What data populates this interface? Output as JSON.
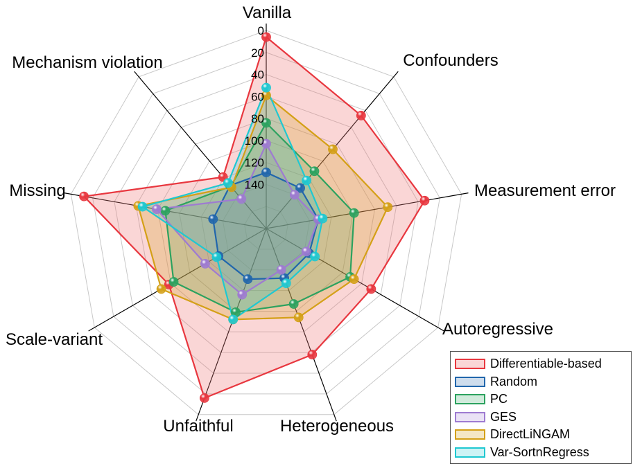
{
  "chart_data": {
    "type": "radar",
    "axes": [
      "Vanilla",
      "Confounders",
      "Measurement error",
      "Autoregressive",
      "Heterogeneous",
      "Unfaithful",
      "Scale-variant",
      "Missing",
      "Mechanism violation"
    ],
    "radial_ticks": [
      "0",
      "20",
      "40",
      "60",
      "80",
      "100",
      "120",
      "140"
    ],
    "radial_range": [
      0,
      180
    ],
    "radial_reversed": true,
    "grid": true,
    "legend_position": "bottom-right",
    "series": [
      {
        "name": "Differentiable-based",
        "color": "#e8373f",
        "fill": "rgba(240,120,120,0.30)",
        "values": [
          6,
          46,
          34,
          70,
          58,
          16,
          78,
          12,
          119
        ]
      },
      {
        "name": "Random",
        "color": "#2166ac",
        "fill": "rgba(33,102,172,0.22)",
        "values": [
          129,
          132,
          132,
          135,
          132,
          131,
          130,
          131,
          129
        ]
      },
      {
        "name": "PC",
        "color": "#2ca25f",
        "fill": "rgba(44,162,95,0.22)",
        "values": [
          84,
          112,
          99,
          92,
          107,
          99,
          83,
          87,
          130
        ]
      },
      {
        "name": "GES",
        "color": "#9e7bd1",
        "fill": "rgba(158,123,209,0.22)",
        "values": [
          103,
          140,
          132,
          138,
          140,
          116,
          116,
          79,
          145
        ]
      },
      {
        "name": "DirectLiNGAM",
        "color": "#d4a017",
        "fill": "rgba(212,160,23,0.25)",
        "values": [
          59,
          86,
          68,
          88,
          94,
          92,
          70,
          62,
          131
        ]
      },
      {
        "name": "Var-SortnRegress",
        "color": "#1fc8d1",
        "fill": "rgba(31,200,209,0.22)",
        "values": [
          52,
          123,
          128,
          129,
          127,
          92,
          128,
          66,
          126
        ]
      }
    ]
  }
}
